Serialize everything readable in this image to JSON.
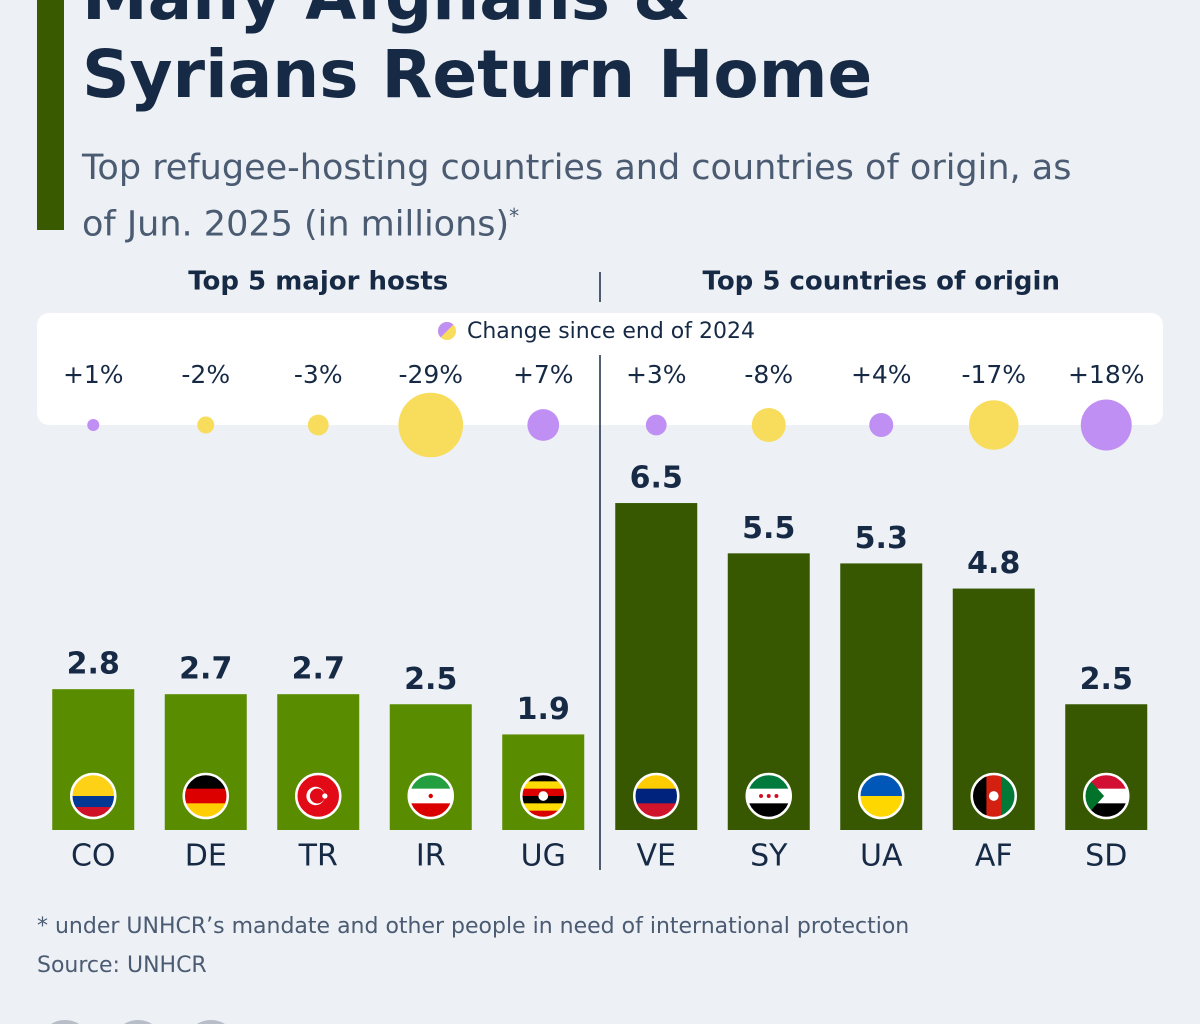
{
  "title": "Many Afghans & Syrians Return Home",
  "subtitle": "Top refugee-hosting countries and countries of origin, as of Jun. 2025 (in millions)",
  "subtitle_mark": "*",
  "legend": "Change since end of 2024",
  "positive_color": "#c08ff3",
  "negative_color": "#f8dc5c",
  "footnote": "* under UNHCR’s mandate and other people in need of international protection",
  "source": "Source: UNHCR",
  "chart_data": [
    {
      "type": "bar",
      "title": "Top 5 major hosts",
      "color": "#5a8c00",
      "categories": [
        "CO",
        "DE",
        "TR",
        "IR",
        "UG"
      ],
      "values": [
        2.8,
        2.7,
        2.7,
        2.5,
        1.9
      ],
      "change": {
        "values": [
          1,
          -2,
          -3,
          -29,
          7
        ],
        "value_labels": [
          "+1%",
          "-2%",
          "-3%",
          "-29%",
          "+7%"
        ]
      }
    },
    {
      "type": "bar",
      "title": "Top 5 countries of origin",
      "color": "#375800",
      "categories": [
        "VE",
        "SY",
        "UA",
        "AF",
        "SD"
      ],
      "values": [
        6.5,
        5.5,
        5.3,
        4.8,
        2.5
      ],
      "change": {
        "values": [
          3,
          -8,
          4,
          -17,
          18
        ],
        "value_labels": [
          "+3%",
          "-8%",
          "+4%",
          "-17%",
          "+18%"
        ]
      }
    }
  ]
}
